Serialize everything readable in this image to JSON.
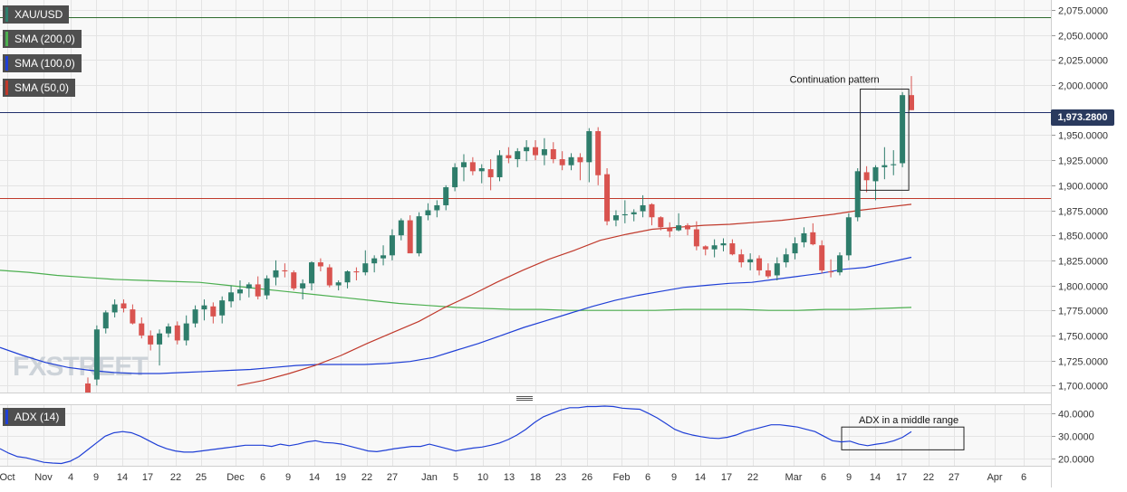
{
  "chart_data": [
    {
      "type": "candlestick",
      "symbol": "XAU/USD",
      "last_price": 1973.28,
      "last_price_label": "1,973.2800",
      "ylim": [
        1693,
        2085
      ],
      "y_ticks": [
        "2,075.0000",
        "2,050.0000",
        "2,025.0000",
        "2,000.0000",
        "1,950.0000",
        "1,925.0000",
        "1,900.0000",
        "1,875.0000",
        "1,850.0000",
        "1,825.0000",
        "1,800.0000",
        "1,775.0000",
        "1,750.0000",
        "1,725.0000",
        "1,700.0000"
      ],
      "y_tick_values": [
        2075,
        2050,
        2025,
        2000,
        1950,
        1925,
        1900,
        1875,
        1850,
        1825,
        1800,
        1775,
        1750,
        1725,
        1700
      ],
      "grid": true,
      "legend": [
        {
          "label": "XAU/USD",
          "color": "#2e7d6b"
        },
        {
          "label": "SMA (200,0)",
          "color": "#4caf50"
        },
        {
          "label": "SMA (100,0)",
          "color": "#1f3fd6"
        },
        {
          "label": "SMA (50,0)",
          "color": "#c0392b"
        }
      ],
      "horizontal_lines": [
        {
          "value": 2068,
          "color": "#2e6b2e"
        },
        {
          "value": 1973.28,
          "color": "#1f2e6b"
        },
        {
          "value": 1887,
          "color": "#c0392b"
        }
      ],
      "annotation": {
        "text": "Continuation pattern",
        "box": [
          1895,
          1996
        ],
        "candles": [
          1,
          5
        ]
      },
      "candles": [
        [
          1702,
          1708,
          1693,
          1693
        ],
        [
          1706,
          1760,
          1700,
          1756
        ],
        [
          1757,
          1775,
          1752,
          1773
        ],
        [
          1773,
          1786,
          1768,
          1781
        ],
        [
          1782,
          1786,
          1773,
          1777
        ],
        [
          1776,
          1781,
          1761,
          1762
        ],
        [
          1762,
          1768,
          1747,
          1750
        ],
        [
          1750,
          1755,
          1735,
          1741
        ],
        [
          1741,
          1756,
          1720,
          1752
        ],
        [
          1752,
          1762,
          1748,
          1759
        ],
        [
          1760,
          1764,
          1741,
          1745
        ],
        [
          1745,
          1770,
          1740,
          1762
        ],
        [
          1762,
          1780,
          1758,
          1776
        ],
        [
          1776,
          1786,
          1765,
          1780
        ],
        [
          1779,
          1783,
          1762,
          1769
        ],
        [
          1770,
          1789,
          1762,
          1785
        ],
        [
          1784,
          1800,
          1778,
          1793
        ],
        [
          1792,
          1805,
          1785,
          1796
        ],
        [
          1797,
          1803,
          1788,
          1801
        ],
        [
          1801,
          1809,
          1786,
          1789
        ],
        [
          1790,
          1810,
          1786,
          1807
        ],
        [
          1808,
          1825,
          1800,
          1815
        ],
        [
          1815,
          1822,
          1808,
          1814
        ],
        [
          1813,
          1815,
          1795,
          1797
        ],
        [
          1797,
          1806,
          1786,
          1802
        ],
        [
          1802,
          1824,
          1795,
          1823
        ],
        [
          1823,
          1827,
          1814,
          1819
        ],
        [
          1818,
          1821,
          1798,
          1800
        ],
        [
          1800,
          1805,
          1795,
          1803
        ],
        [
          1803,
          1815,
          1797,
          1814
        ],
        [
          1814,
          1818,
          1805,
          1813
        ],
        [
          1813,
          1835,
          1810,
          1822
        ],
        [
          1822,
          1830,
          1813,
          1827
        ],
        [
          1827,
          1840,
          1820,
          1830
        ],
        [
          1830,
          1856,
          1825,
          1850
        ],
        [
          1850,
          1867,
          1845,
          1865
        ],
        [
          1865,
          1870,
          1835,
          1832
        ],
        [
          1832,
          1873,
          1829,
          1869
        ],
        [
          1870,
          1882,
          1865,
          1875
        ],
        [
          1875,
          1885,
          1868,
          1880
        ],
        [
          1880,
          1900,
          1875,
          1898
        ],
        [
          1898,
          1922,
          1894,
          1918
        ],
        [
          1918,
          1931,
          1904,
          1923
        ],
        [
          1923,
          1928,
          1910,
          1914
        ],
        [
          1914,
          1921,
          1902,
          1917
        ],
        [
          1916,
          1926,
          1895,
          1908
        ],
        [
          1908,
          1935,
          1904,
          1930
        ],
        [
          1930,
          1938,
          1922,
          1927
        ],
        [
          1926,
          1937,
          1918,
          1934
        ],
        [
          1934,
          1945,
          1924,
          1938
        ],
        [
          1938,
          1945,
          1925,
          1930
        ],
        [
          1930,
          1947,
          1920,
          1936
        ],
        [
          1936,
          1943,
          1922,
          1926
        ],
        [
          1926,
          1934,
          1915,
          1920
        ],
        [
          1920,
          1932,
          1915,
          1928
        ],
        [
          1928,
          1932,
          1905,
          1923
        ],
        [
          1923,
          1957,
          1903,
          1954
        ],
        [
          1954,
          1958,
          1900,
          1910
        ],
        [
          1911,
          1917,
          1860,
          1864
        ],
        [
          1865,
          1875,
          1859,
          1870
        ],
        [
          1870,
          1885,
          1862,
          1871
        ],
        [
          1871,
          1876,
          1864,
          1873
        ],
        [
          1874,
          1890,
          1868,
          1880
        ],
        [
          1881,
          1882,
          1860,
          1868
        ],
        [
          1868,
          1869,
          1855,
          1858
        ],
        [
          1857,
          1863,
          1848,
          1854
        ],
        [
          1855,
          1872,
          1854,
          1860
        ],
        [
          1860,
          1862,
          1850,
          1856
        ],
        [
          1856,
          1864,
          1835,
          1839
        ],
        [
          1839,
          1840,
          1830,
          1836
        ],
        [
          1836,
          1846,
          1828,
          1840
        ],
        [
          1840,
          1847,
          1834,
          1842
        ],
        [
          1842,
          1846,
          1830,
          1831
        ],
        [
          1831,
          1836,
          1818,
          1823
        ],
        [
          1823,
          1832,
          1815,
          1826
        ],
        [
          1827,
          1830,
          1810,
          1815
        ],
        [
          1815,
          1822,
          1807,
          1809
        ],
        [
          1810,
          1828,
          1805,
          1822
        ],
        [
          1823,
          1837,
          1818,
          1831
        ],
        [
          1832,
          1848,
          1826,
          1842
        ],
        [
          1843,
          1858,
          1838,
          1852
        ],
        [
          1853,
          1862,
          1840,
          1841
        ],
        [
          1840,
          1845,
          1812,
          1815
        ],
        [
          1814,
          1826,
          1808,
          1813
        ],
        [
          1813,
          1833,
          1810,
          1830
        ],
        [
          1830,
          1872,
          1825,
          1868
        ],
        [
          1868,
          1917,
          1864,
          1914
        ],
        [
          1913,
          1919,
          1893,
          1905
        ],
        [
          1904,
          1920,
          1885,
          1918
        ],
        [
          1918,
          1938,
          1906,
          1920
        ],
        [
          1920,
          1935,
          1910,
          1921
        ],
        [
          1922,
          1993,
          1918,
          1990
        ],
        [
          1990,
          2009,
          1975,
          1975
        ]
      ],
      "sma200": [
        1815,
        1813,
        1810,
        1808,
        1806,
        1805,
        1804,
        1803,
        1800,
        1797,
        1794,
        1791,
        1788,
        1785,
        1782,
        1780,
        1778,
        1777,
        1776,
        1776,
        1775,
        1775,
        1775,
        1775,
        1776,
        1776,
        1776,
        1775,
        1775,
        1776,
        1776,
        1777,
        1778
      ],
      "sma100": [
        1738,
        1730,
        1723,
        1718,
        1715,
        1713,
        1712,
        1712,
        1713,
        1714,
        1715,
        1716,
        1718,
        1720,
        1721,
        1721,
        1721,
        1722,
        1724,
        1728,
        1735,
        1742,
        1750,
        1758,
        1765,
        1772,
        1779,
        1785,
        1790,
        1794,
        1798,
        1800,
        1802,
        1803,
        1806,
        1809,
        1812,
        1816,
        1818,
        1823,
        1828
      ],
      "sma50": [
        1700,
        1705,
        1712,
        1720,
        1730,
        1742,
        1753,
        1764,
        1778,
        1790,
        1803,
        1815,
        1826,
        1835,
        1845,
        1851,
        1856,
        1858,
        1860,
        1861,
        1863,
        1865,
        1868,
        1871,
        1875,
        1878,
        1881
      ]
    },
    {
      "type": "line",
      "name": "ADX (14)",
      "ylim": [
        17,
        44
      ],
      "y_ticks": [
        "40.0000",
        "30.0000",
        "20.0000"
      ],
      "y_tick_values": [
        40,
        30,
        20
      ],
      "x_ticks": [
        "Oct",
        "Nov",
        "4",
        "9",
        "14",
        "17",
        "22",
        "25",
        "Dec",
        "6",
        "9",
        "14",
        "19",
        "22",
        "27",
        "Jan",
        "5",
        "10",
        "13",
        "18",
        "23",
        "26",
        "Feb",
        "6",
        "9",
        "14",
        "17",
        "22",
        "Mar",
        "6",
        "9",
        "14",
        "17",
        "22",
        "27",
        "Apr",
        "6"
      ],
      "annotation": {
        "text": "ADX in a middle range"
      },
      "values": [
        24.5,
        22.5,
        21,
        20.5,
        19.5,
        18.5,
        18.2,
        18,
        19,
        21,
        24,
        27,
        30,
        31.5,
        32,
        31.5,
        30,
        28,
        26,
        24.5,
        23.5,
        23,
        23,
        23.5,
        24,
        24.5,
        25,
        25.5,
        26,
        26,
        26,
        25.5,
        26.5,
        25.8,
        26.5,
        27.5,
        28,
        27.2,
        27,
        26.5,
        25.5,
        24.5,
        23.5,
        23.2,
        23.8,
        24.5,
        25,
        25.5,
        25.5,
        26.5,
        25.5,
        24.5,
        23.5,
        24.2,
        24.8,
        25.2,
        26,
        27,
        28.5,
        30.5,
        33,
        36,
        38.5,
        40,
        41.5,
        42.5,
        42.5,
        43,
        43,
        43.2,
        43,
        42.3,
        42,
        41.8,
        40,
        38,
        35.5,
        33,
        31.5,
        30.5,
        29.8,
        29.2,
        29,
        29.5,
        30.5,
        32,
        33,
        34,
        35,
        35,
        34.5,
        34,
        33,
        32,
        30,
        28,
        27.5,
        27.8,
        26.5,
        25.8,
        26.5,
        27,
        28,
        29.5,
        32
      ]
    }
  ],
  "watermark": "FXSTREET",
  "pane_divider_icon": "grip-lines-icon"
}
